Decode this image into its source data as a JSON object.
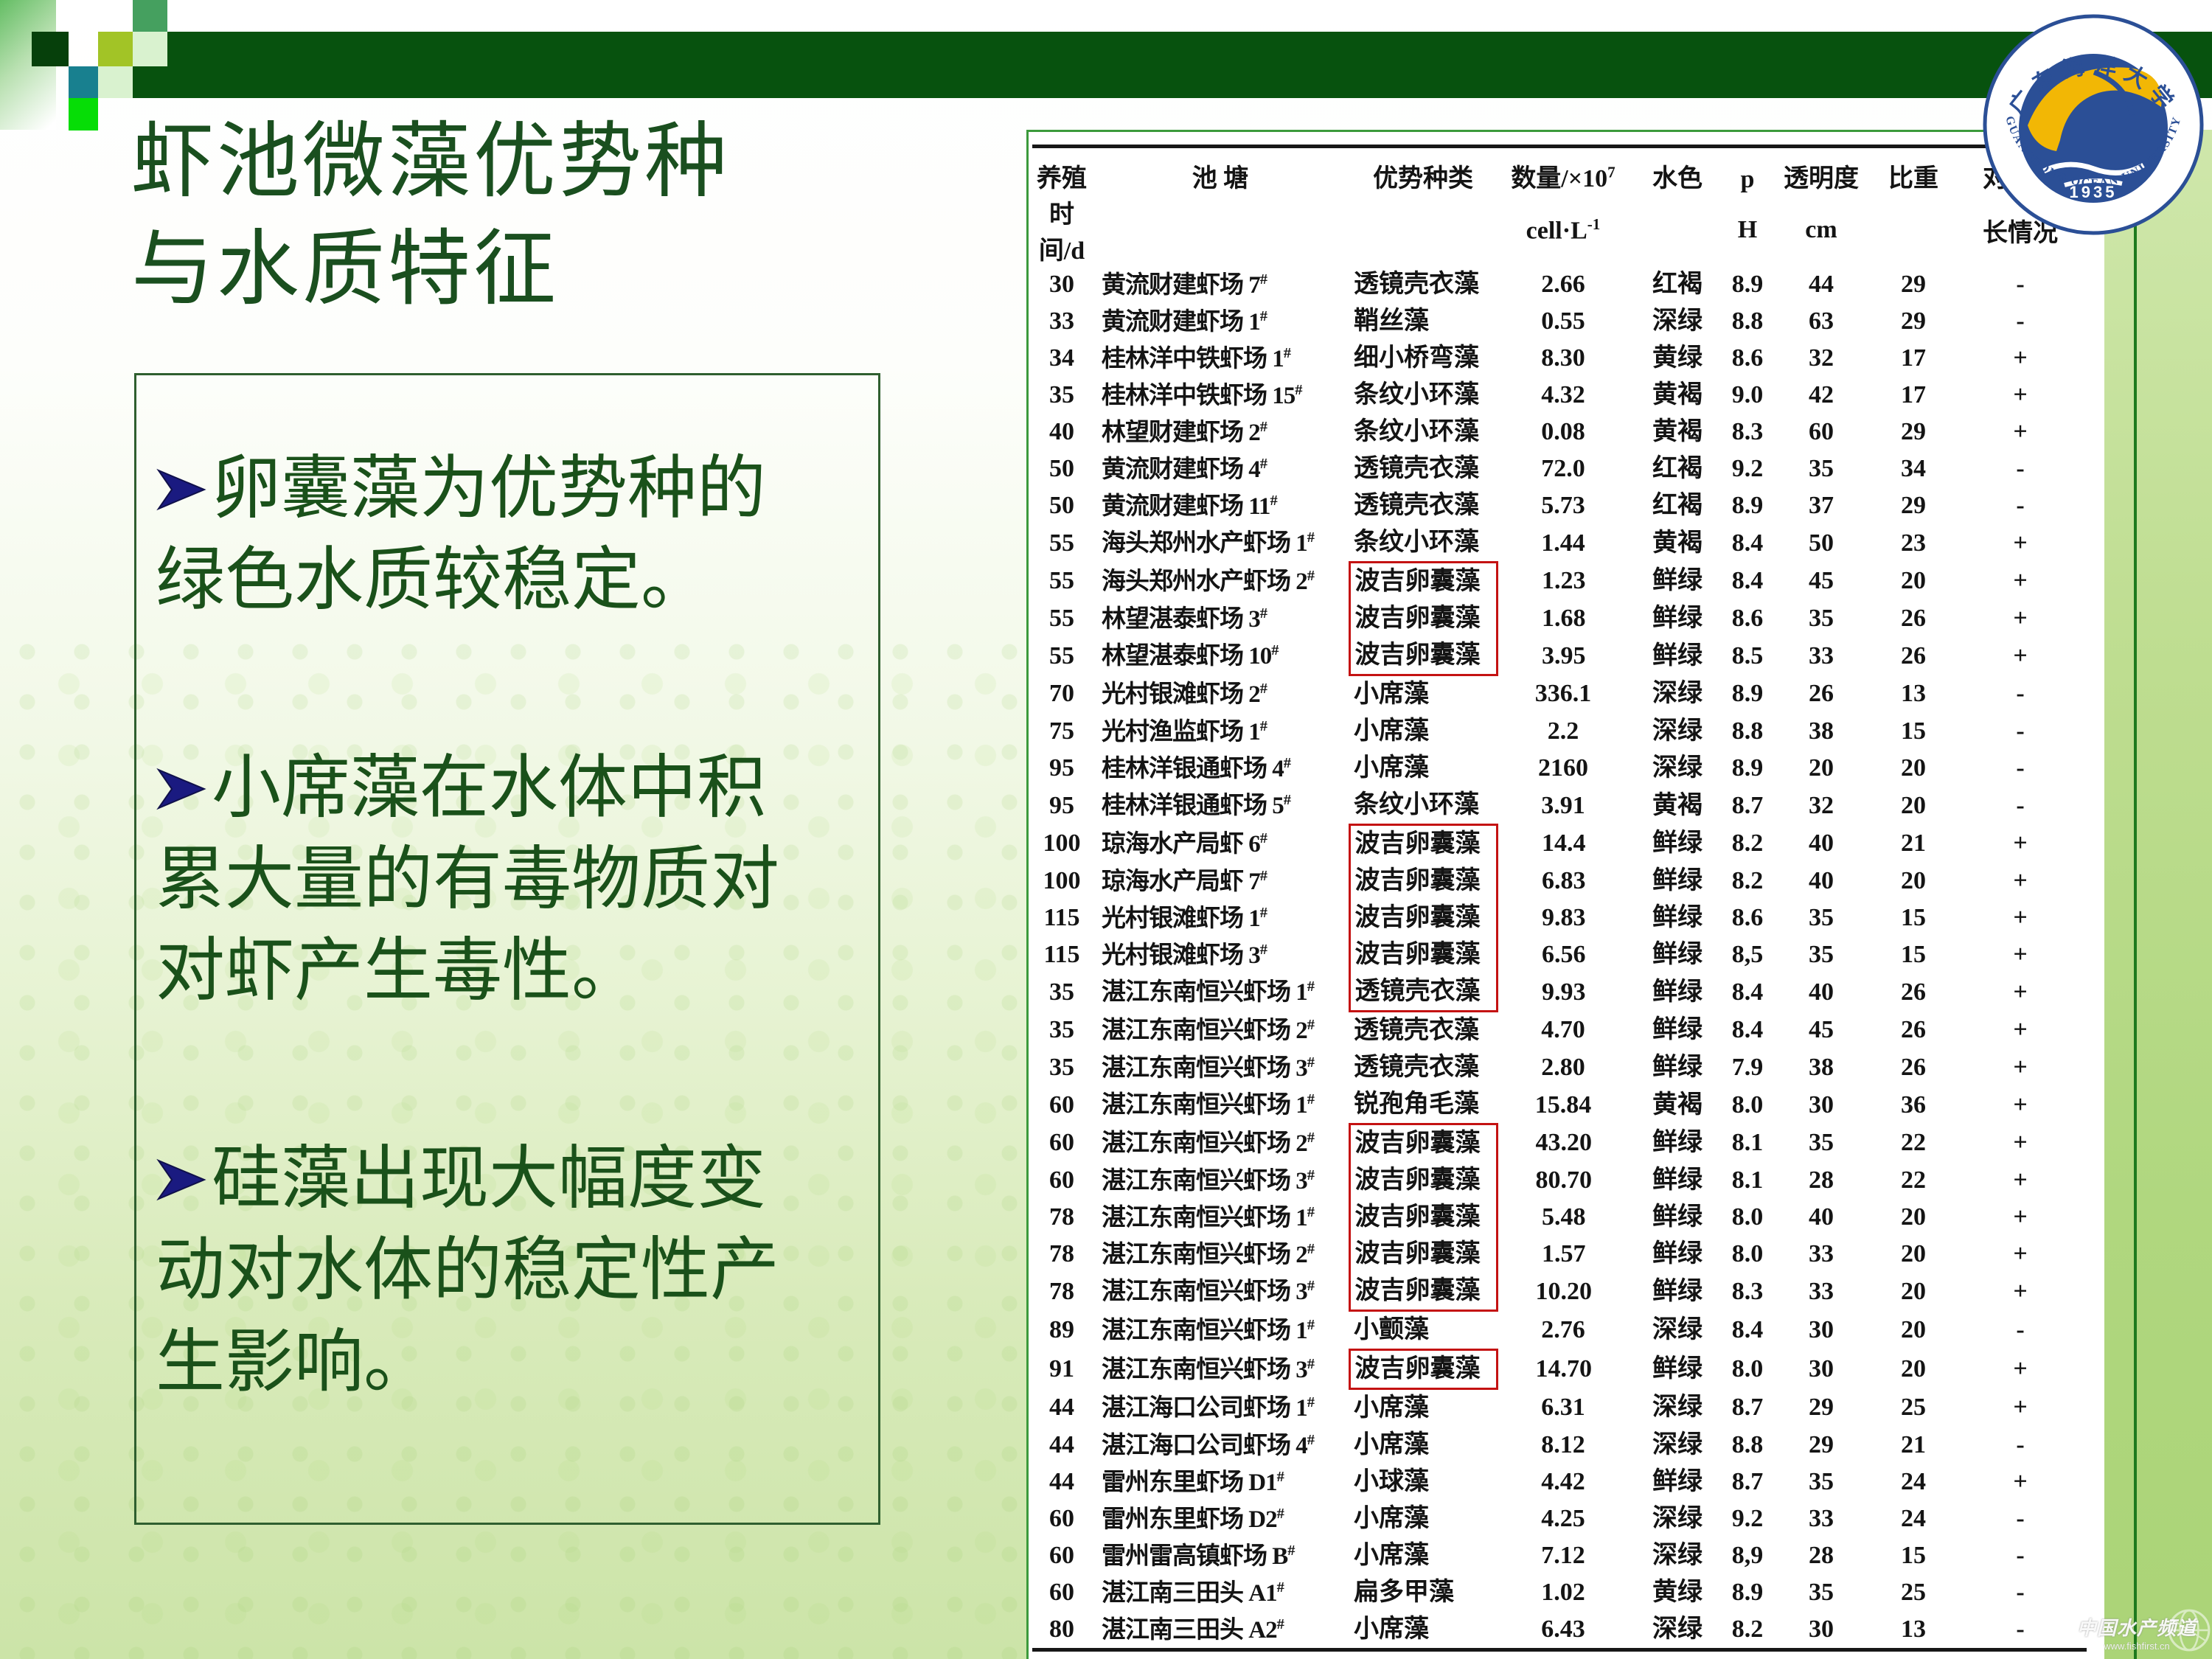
{
  "slide": {
    "title_lines": [
      "虾池微藻优势种",
      "与水质特征"
    ],
    "bullets": [
      {
        "lines": [
          "卵囊藻为优势种的",
          "绿色水质较稳定。"
        ]
      },
      {
        "lines": [
          "小席藻在水体中积",
          "累大量的有毒物质对",
          "对虾产生毒性。"
        ]
      },
      {
        "lines": [
          "硅藻出现大幅度变",
          "动对水体的稳定性产",
          "生影响。"
        ]
      }
    ]
  },
  "table": {
    "headers": [
      {
        "l1": "养殖",
        "s1": "",
        "l2": "时间/d",
        "s2": ""
      },
      {
        "l1": "池  塘",
        "s1": "",
        "l2": "",
        "s2": ""
      },
      {
        "l1": "优势种类",
        "s1": "",
        "l2": "",
        "s2": ""
      },
      {
        "l1": "数量/×10",
        "s1": "7",
        "l2": "cell·L",
        "s2": "-1"
      },
      {
        "l1": "水色",
        "s1": "",
        "l2": "",
        "s2": ""
      },
      {
        "l1": "p",
        "s1": "",
        "l2": "H",
        "s2": ""
      },
      {
        "l1": "透明度",
        "s1": "",
        "l2": "cm",
        "s2": ""
      },
      {
        "l1": "比重",
        "s1": "",
        "l2": "",
        "s2": ""
      },
      {
        "l1": "对虾生",
        "s1": "",
        "l2": "长情况",
        "s2": ""
      }
    ],
    "rows": [
      [
        "30",
        "黄流财建虾场 7",
        "透镜壳衣藻",
        "2.66",
        "红褐",
        "8.9",
        "44",
        "29",
        "-",
        ""
      ],
      [
        "33",
        "黄流财建虾场 1",
        "鞘丝藻",
        "0.55",
        "深绿",
        "8.8",
        "63",
        "29",
        "-",
        ""
      ],
      [
        "34",
        "桂林洋中铁虾场 1",
        "细小桥弯藻",
        "8.30",
        "黄绿",
        "8.6",
        "32",
        "17",
        "+",
        ""
      ],
      [
        "35",
        "桂林洋中铁虾场 15",
        "条纹小环藻",
        "4.32",
        "黄褐",
        "9.0",
        "42",
        "17",
        "+",
        ""
      ],
      [
        "40",
        "林望财建虾场 2",
        "条纹小环藻",
        "0.08",
        "黄褐",
        "8.3",
        "60",
        "29",
        "+",
        ""
      ],
      [
        "50",
        "黄流财建虾场 4",
        "透镜壳衣藻",
        "72.0",
        "红褐",
        "9.2",
        "35",
        "34",
        "-",
        ""
      ],
      [
        "50",
        "黄流财建虾场 11",
        "透镜壳衣藻",
        "5.73",
        "红褐",
        "8.9",
        "37",
        "29",
        "-",
        ""
      ],
      [
        "55",
        "海头郑州水产虾场 1",
        "条纹小环藻",
        "1.44",
        "黄褐",
        "8.4",
        "50",
        "23",
        "+",
        ""
      ],
      [
        "55",
        "海头郑州水产虾场 2",
        "波吉卵囊藻",
        "1.23",
        "鲜绿",
        "8.4",
        "45",
        "20",
        "+",
        "start"
      ],
      [
        "55",
        "林望湛泰虾场 3",
        "波吉卵囊藻",
        "1.68",
        "鲜绿",
        "8.6",
        "35",
        "26",
        "+",
        "mid"
      ],
      [
        "55",
        "林望湛泰虾场 10",
        "波吉卵囊藻",
        "3.95",
        "鲜绿",
        "8.5",
        "33",
        "26",
        "+",
        "end"
      ],
      [
        "70",
        "光村银滩虾场 2",
        "小席藻",
        "336.1",
        "深绿",
        "8.9",
        "26",
        "13",
        "-",
        ""
      ],
      [
        "75",
        "光村渔监虾场 1",
        "小席藻",
        "2.2",
        "深绿",
        "8.8",
        "38",
        "15",
        "-",
        ""
      ],
      [
        "95",
        "桂林洋银通虾场 4",
        "小席藻",
        "2160",
        "深绿",
        "8.9",
        "20",
        "20",
        "-",
        ""
      ],
      [
        "95",
        "桂林洋银通虾场 5",
        "条纹小环藻",
        "3.91",
        "黄褐",
        "8.7",
        "32",
        "20",
        "-",
        ""
      ],
      [
        "100",
        "琼海水产局虾 6",
        "波吉卵囊藻",
        "14.4",
        "鲜绿",
        "8.2",
        "40",
        "21",
        "+",
        "start"
      ],
      [
        "100",
        "琼海水产局虾 7",
        "波吉卵囊藻",
        "6.83",
        "鲜绿",
        "8.2",
        "40",
        "20",
        "+",
        "mid"
      ],
      [
        "115",
        "光村银滩虾场 1",
        "波吉卵囊藻",
        "9.83",
        "鲜绿",
        "8.6",
        "35",
        "15",
        "+",
        "mid"
      ],
      [
        "115",
        "光村银滩虾场 3",
        "波吉卵囊藻",
        "6.56",
        "鲜绿",
        "8,5",
        "35",
        "15",
        "+",
        "mid"
      ],
      [
        "35",
        "湛江东南恒兴虾场 1",
        "透镜壳衣藻",
        "9.93",
        "鲜绿",
        "8.4",
        "40",
        "26",
        "+",
        "end"
      ],
      [
        "35",
        "湛江东南恒兴虾场 2",
        "透镜壳衣藻",
        "4.70",
        "鲜绿",
        "8.4",
        "45",
        "26",
        "+",
        ""
      ],
      [
        "35",
        "湛江东南恒兴虾场 3",
        "透镜壳衣藻",
        "2.80",
        "鲜绿",
        "7.9",
        "38",
        "26",
        "+",
        ""
      ],
      [
        "60",
        "湛江东南恒兴虾场 1",
        "锐孢角毛藻",
        "15.84",
        "黄褐",
        "8.0",
        "30",
        "36",
        "+",
        ""
      ],
      [
        "60",
        "湛江东南恒兴虾场 2",
        "波吉卵囊藻",
        "43.20",
        "鲜绿",
        "8.1",
        "35",
        "22",
        "+",
        "start"
      ],
      [
        "60",
        "湛江东南恒兴虾场 3",
        "波吉卵囊藻",
        "80.70",
        "鲜绿",
        "8.1",
        "28",
        "22",
        "+",
        "mid"
      ],
      [
        "78",
        "湛江东南恒兴虾场 1",
        "波吉卵囊藻",
        "5.48",
        "鲜绿",
        "8.0",
        "40",
        "20",
        "+",
        "mid"
      ],
      [
        "78",
        "湛江东南恒兴虾场 2",
        "波吉卵囊藻",
        "1.57",
        "鲜绿",
        "8.0",
        "33",
        "20",
        "+",
        "mid"
      ],
      [
        "78",
        "湛江东南恒兴虾场 3",
        "波吉卵囊藻",
        "10.20",
        "鲜绿",
        "8.3",
        "33",
        "20",
        "+",
        "end"
      ],
      [
        "89",
        "湛江东南恒兴虾场 1",
        "小颤藻",
        "2.76",
        "深绿",
        "8.4",
        "30",
        "20",
        "-",
        ""
      ],
      [
        "91",
        "湛江东南恒兴虾场 3",
        "波吉卵囊藻",
        "14.70",
        "鲜绿",
        "8.0",
        "30",
        "20",
        "+",
        "single"
      ],
      [
        "44",
        "湛江海口公司虾场 1",
        "小席藻",
        "6.31",
        "深绿",
        "8.7",
        "29",
        "25",
        "+",
        ""
      ],
      [
        "44",
        "湛江海口公司虾场 4",
        "小席藻",
        "8.12",
        "深绿",
        "8.8",
        "29",
        "21",
        "-",
        ""
      ],
      [
        "44",
        "雷州东里虾场 D1",
        "小球藻",
        "4.42",
        "鲜绿",
        "8.7",
        "35",
        "24",
        "+",
        ""
      ],
      [
        "60",
        "雷州东里虾场 D2",
        "小席藻",
        "4.25",
        "深绿",
        "9.2",
        "33",
        "24",
        "-",
        ""
      ],
      [
        "60",
        "雷州雷高镇虾场 B",
        "小席藻",
        "7.12",
        "深绿",
        "8,9",
        "28",
        "15",
        "-",
        ""
      ],
      [
        "60",
        "湛江南三田头 A1",
        "扁多甲藻",
        "1.02",
        "黄绿",
        "8.9",
        "35",
        "25",
        "-",
        ""
      ],
      [
        "80",
        "湛江南三田头 A2",
        "小席藻",
        "6.43",
        "深绿",
        "8.2",
        "30",
        "13",
        "-",
        ""
      ]
    ],
    "pond_superscript": "#"
  },
  "logo": {
    "univ_cn": "广东海洋大学",
    "univ_en": "GUANGDONG OCEAN UNIVERSITY",
    "year": "1935"
  },
  "watermark": {
    "line1": "中国水产频道",
    "line2": "www.fishfirst.cn"
  },
  "colors": {
    "band_green": "#07520e",
    "title_green": "#1a4f1f",
    "bullet_arrow_navy": "#1a1a80",
    "red_box": "#c41212",
    "logo_navy": "#2b4f96",
    "logo_yellow": "#f2b705"
  }
}
